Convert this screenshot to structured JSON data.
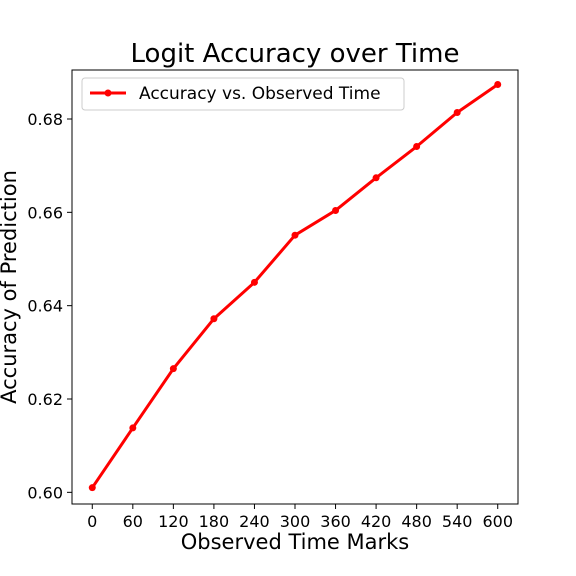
{
  "chart_data": {
    "type": "line",
    "title": "Logit Accuracy over Time",
    "xlabel": "Observed Time Marks",
    "ylabel": "Accuracy of Prediction",
    "x": [
      0,
      60,
      120,
      180,
      240,
      300,
      360,
      420,
      480,
      540,
      600
    ],
    "xlim": [
      -30,
      630
    ],
    "ylim": [
      0.5975,
      0.6905
    ],
    "yticks": [
      0.6,
      0.62,
      0.64,
      0.66,
      0.68
    ],
    "ytick_labels": [
      "0.60",
      "0.62",
      "0.64",
      "0.66",
      "0.68"
    ],
    "grid": false,
    "legend_position": "top-left",
    "series": [
      {
        "name": "Accuracy vs. Observed Time",
        "color": "#ff0000",
        "marker": "circle",
        "values": [
          0.601,
          0.6138,
          0.6265,
          0.6372,
          0.645,
          0.6551,
          0.6604,
          0.6674,
          0.6741,
          0.6814,
          0.6874
        ]
      }
    ]
  }
}
